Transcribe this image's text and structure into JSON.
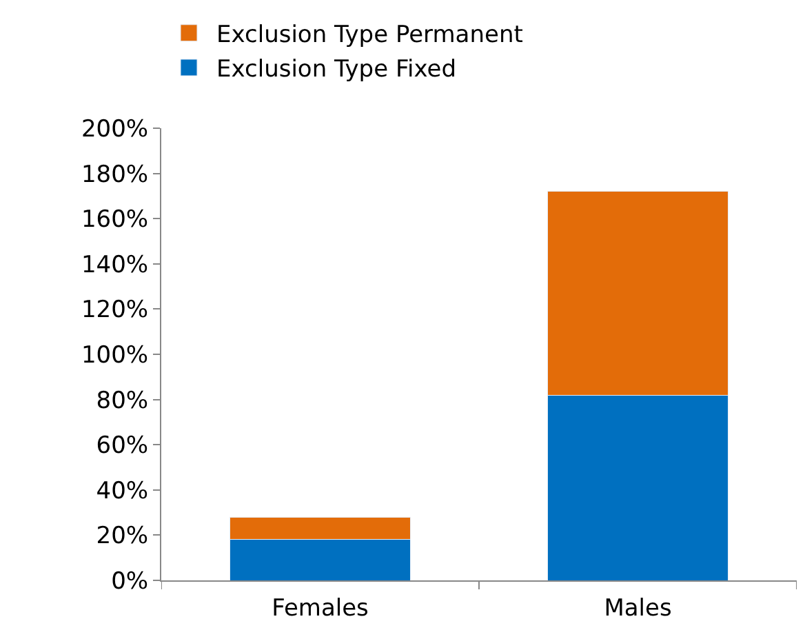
{
  "chart_data": {
    "type": "bar",
    "stacked": true,
    "categories": [
      "Females",
      "Males"
    ],
    "series": [
      {
        "name": "Exclusion Type Fixed",
        "color": "#0070c0",
        "values": [
          18,
          82
        ]
      },
      {
        "name": "Exclusion Type Permanent",
        "color": "#e36c09",
        "values": [
          10,
          90
        ]
      }
    ],
    "ylim": [
      0,
      200
    ],
    "yticks": [
      {
        "value": 0,
        "label": "0%"
      },
      {
        "value": 20,
        "label": "20%"
      },
      {
        "value": 40,
        "label": "40%"
      },
      {
        "value": 60,
        "label": "60%"
      },
      {
        "value": 80,
        "label": "80%"
      },
      {
        "value": 100,
        "label": "100%"
      },
      {
        "value": 120,
        "label": "120%"
      },
      {
        "value": 140,
        "label": "140%"
      },
      {
        "value": 160,
        "label": "160%"
      },
      {
        "value": 180,
        "label": "180%"
      },
      {
        "value": 200,
        "label": "200%"
      }
    ],
    "legend": "top"
  }
}
